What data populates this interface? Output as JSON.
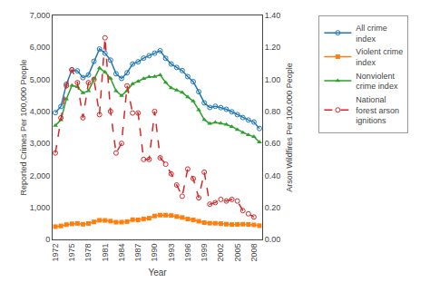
{
  "chart_data": {
    "type": "line",
    "x": [
      1972,
      1973,
      1974,
      1975,
      1976,
      1977,
      1978,
      1979,
      1980,
      1981,
      1982,
      1983,
      1984,
      1985,
      1986,
      1987,
      1988,
      1989,
      1990,
      1991,
      1992,
      1993,
      1994,
      1995,
      1996,
      1997,
      1998,
      1999,
      2000,
      2001,
      2002,
      2003,
      2004,
      2005,
      2006,
      2007,
      2008,
      2009
    ],
    "x_label": "Year",
    "y_label": "Reported Crimes Per 100,000 People",
    "y2_label": "Arson Wildfires Per 100,000 People",
    "xlim": [
      1971.5,
      2009.5
    ],
    "xticks": [
      1972,
      1975,
      1978,
      1981,
      1984,
      1987,
      1990,
      1993,
      1996,
      1999,
      2002,
      2005,
      2008
    ],
    "ylim": [
      0,
      7000
    ],
    "yticks": [
      0,
      {
        "value": 1000,
        "label": "1,000"
      },
      {
        "value": 2000,
        "label": "2,000"
      },
      {
        "value": 3000,
        "label": "3,000"
      },
      {
        "value": 4000,
        "label": "4,000"
      },
      {
        "value": 5000,
        "label": "5,000"
      },
      {
        "value": 6000,
        "label": "6,000"
      },
      {
        "value": 7000,
        "label": "7,000"
      }
    ],
    "y2lim": [
      0.0,
      1.4
    ],
    "y2ticks": [
      {
        "value": 0.0,
        "label": "0.00"
      },
      {
        "value": 0.2,
        "label": "0.20"
      },
      {
        "value": 0.4,
        "label": "0.40"
      },
      {
        "value": 0.6,
        "label": "0.60"
      },
      {
        "value": 0.8,
        "label": "0.80"
      },
      {
        "value": 1.0,
        "label": "1.00"
      },
      {
        "value": 1.2,
        "label": "1.20"
      },
      {
        "value": 1.4,
        "label": "1.40"
      }
    ],
    "grid": false,
    "legend": "right",
    "series": [
      {
        "name": "All crime\nindex",
        "marker": "circle-open",
        "line_style": "solid",
        "values": [
          3960,
          4154,
          4850,
          5299,
          5267,
          5055,
          5141,
          5565,
          5950,
          5820,
          5604,
          5175,
          5031,
          5207,
          5480,
          5550,
          5664,
          5741,
          5820,
          5898,
          5660,
          5482,
          5374,
          5278,
          5088,
          4930,
          4615,
          4267,
          4124,
          4160,
          4118,
          4067,
          3988,
          3899,
          3808,
          3730,
          3668,
          3466
        ]
      },
      {
        "name": "Violent crime\nindex",
        "marker": "square",
        "line_style": "solid",
        "values": [
          400,
          420,
          462,
          487,
          499,
          475,
          498,
          548,
          597,
          594,
          571,
          537,
          539,
          556,
          617,
          610,
          640,
          663,
          732,
          758,
          757,
          747,
          714,
          685,
          636,
          611,
          567,
          524,
          507,
          504,
          494,
          476,
          465,
          469,
          474,
          467,
          455,
          429
        ]
      },
      {
        "name": "Nonviolent\ncrime index",
        "marker": "triangle-up",
        "line_style": "solid",
        "values": [
          3560,
          3734,
          4388,
          4812,
          4768,
          4580,
          4643,
          5017,
          5353,
          5226,
          5033,
          4638,
          4492,
          4651,
          4863,
          4940,
          5024,
          5078,
          5088,
          5140,
          4903,
          4735,
          4660,
          4593,
          4452,
          4319,
          4048,
          3743,
          3617,
          3656,
          3624,
          3591,
          3523,
          3430,
          3334,
          3263,
          3213,
          3037
        ]
      },
      {
        "name": "National\nforest arson\nignitions",
        "marker": "circle-open",
        "line_style": "dash",
        "axis": "y2",
        "values": [
          0.54,
          0.76,
          0.96,
          1.06,
          0.98,
          0.76,
          0.98,
          1.0,
          0.78,
          1.26,
          0.8,
          0.54,
          0.6,
          0.96,
          0.79,
          0.79,
          0.5,
          0.5,
          0.8,
          0.51,
          0.47,
          0.41,
          0.34,
          0.27,
          0.44,
          0.38,
          0.26,
          0.42,
          0.22,
          0.23,
          0.25,
          0.24,
          0.25,
          0.24,
          0.18,
          0.16,
          0.14,
          null
        ]
      }
    ]
  }
}
